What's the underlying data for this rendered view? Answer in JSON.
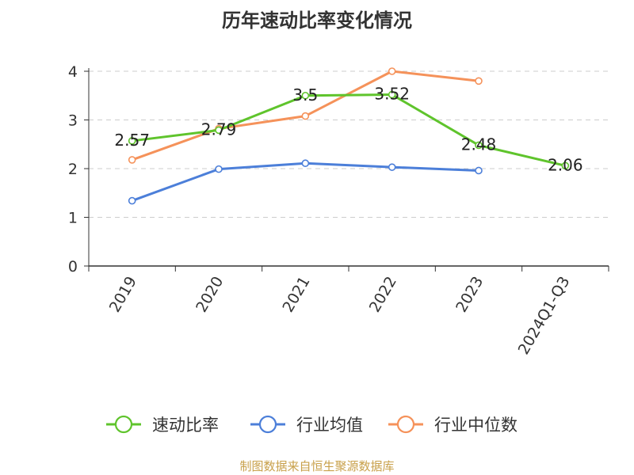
{
  "chart_data": {
    "type": "line",
    "title": "历年速动比率变化情况",
    "categories": [
      "2019",
      "2020",
      "2021",
      "2022",
      "2023",
      "2024Q1-Q3"
    ],
    "yticks": [
      "0",
      "1",
      "2",
      "3",
      "4"
    ],
    "ylim": [
      0,
      4
    ],
    "grid": "horizontal dashed",
    "legend_position": "bottom",
    "series": [
      {
        "name": "速动比率",
        "color": "#5fc42c",
        "values": [
          2.57,
          2.79,
          3.5,
          3.52,
          2.48,
          2.06
        ],
        "labels": [
          "2.57",
          "2.79",
          "3.5",
          "3.52",
          "2.48",
          "2.06"
        ]
      },
      {
        "name": "行业均值",
        "color": "#4c7fd9",
        "values": [
          1.34,
          1.99,
          2.11,
          2.03,
          1.96,
          null
        ]
      },
      {
        "name": "行业中位数",
        "color": "#f5925a",
        "values": [
          2.18,
          2.82,
          3.08,
          4.0,
          3.8,
          null
        ]
      }
    ],
    "source": "制图数据来自恒生聚源数据库"
  }
}
